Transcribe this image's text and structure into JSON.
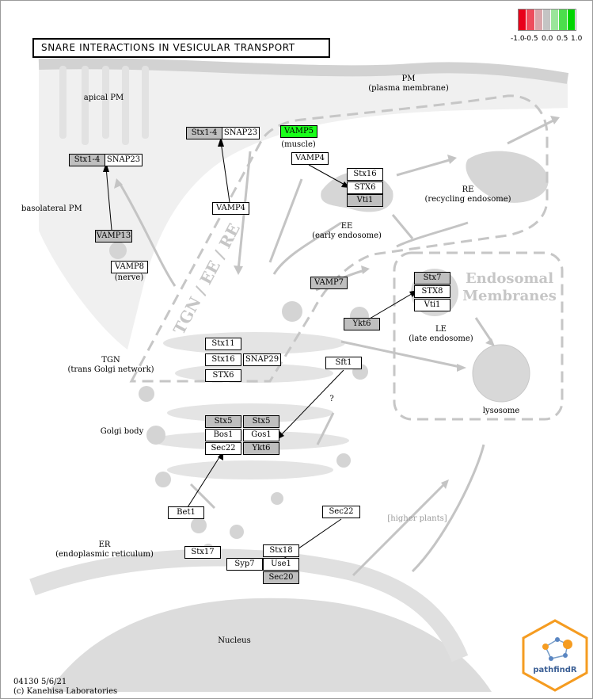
{
  "title": "SNARE INTERACTIONS IN VESICULAR TRANSPORT",
  "legend": {
    "ticks": [
      "-1.0",
      "-0.5",
      "0.0",
      "0.5",
      "1.0"
    ],
    "colors": [
      "#e8001a",
      "#ee4c5c",
      "#d9a5aa",
      "#c4c4c4",
      "#9ae59a",
      "#4cde4c",
      "#00d400"
    ]
  },
  "regions": {
    "pm": "PM",
    "pm_full": "(plasma membrane)",
    "apical_pm": "apical PM",
    "basolateral_pm": "basolateral PM",
    "muscle": "(muscle)",
    "nerve": "(nerve)",
    "re": "RE",
    "re_full": "(recycling endosome)",
    "ee": "EE",
    "ee_full": "(early endosome)",
    "tgn": "TGN",
    "tgn_full": "(trans Golgi network)",
    "le": "LE",
    "le_full": "(late endosome)",
    "lysosome": "lysosome",
    "golgi": "Golgi body",
    "er": "ER",
    "er_full": "(endoplasmic reticulum)",
    "nucleus": "Nucleus",
    "higher_plants": "[higher plants]",
    "question": "?",
    "tgn_ee_re": "TGN / EE / RE",
    "endosomal_line1": "Endosomal",
    "endosomal_line2": "Membranes"
  },
  "nodes": {
    "stx14_pm": "Stx1-4",
    "snap23_pm": "SNAP23",
    "vamp5": "VAMP5",
    "vamp4_top": "VAMP4",
    "stx14_baso": "Stx1-4",
    "snap23_baso": "SNAP23",
    "vamp4_mid": "VAMP4",
    "vamp13": "VAMP13",
    "vamp8": "VAMP8",
    "stx16_ee": "Stx16",
    "stx6_ee": "STX6",
    "vti1_ee": "Vti1",
    "vamp7": "VAMP7",
    "stx7": "Stx7",
    "stx8": "STX8",
    "vti1_le": "Vti1",
    "ykt6_le": "Ykt6",
    "stx11": "Stx11",
    "stx16_tgn": "Stx16",
    "snap29": "SNAP29",
    "stx6_tgn": "STX6",
    "sft1": "Sft1",
    "stx5_a": "Stx5",
    "bos1": "Bos1",
    "sec22_golgi": "Sec22",
    "stx5_b": "Stx5",
    "gos1": "Gos1",
    "ykt6_golgi": "Ykt6",
    "bet1": "Bet1",
    "sec22_er": "Sec22",
    "stx17": "Stx17",
    "syp7": "Syp7",
    "stx18": "Stx18",
    "use1": "Use1",
    "sec20": "Sec20"
  },
  "footer": {
    "map_id": "04130 5/6/21",
    "copyright": "(c) Kanehisa Laboratories"
  },
  "logo_text": "pathfindR"
}
